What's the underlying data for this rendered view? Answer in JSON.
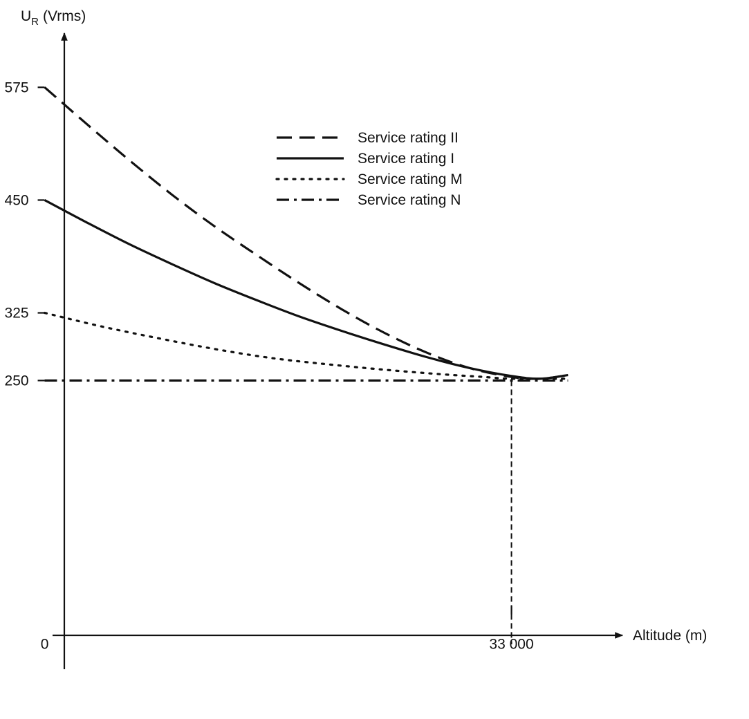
{
  "chart_data": {
    "type": "line",
    "ylabel_main": "U",
    "ylabel_sub": "R",
    "ylabel_unit": "(Vrms)",
    "xlabel": "Altitude (m)",
    "x_ticks": [
      {
        "value": 0,
        "label": "0"
      },
      {
        "value": 33000,
        "label": "33 000"
      }
    ],
    "y_ticks": [
      {
        "value": 575,
        "label": "575"
      },
      {
        "value": 450,
        "label": "450"
      },
      {
        "value": 325,
        "label": "325"
      },
      {
        "value": 250,
        "label": "250"
      }
    ],
    "xlim": [
      -1200,
      42800
    ],
    "ylim": [
      -70,
      635
    ],
    "reference_line": {
      "x": 33000,
      "y": 250,
      "style": "dashed"
    },
    "series": [
      {
        "name": "Service rating II",
        "style": "dashed",
        "x": [
          0,
          3000,
          6000,
          9000,
          12000,
          15000,
          18000,
          21000,
          24000,
          27000,
          30000,
          33000,
          35000,
          37000
        ],
        "y": [
          575,
          534,
          494,
          456,
          421,
          389,
          358,
          329,
          303,
          281,
          264,
          254,
          252,
          256
        ]
      },
      {
        "name": "Service rating I",
        "style": "solid",
        "x": [
          0,
          3000,
          6000,
          9000,
          12000,
          15000,
          18000,
          21000,
          24000,
          27000,
          30000,
          33000,
          35000,
          37000
        ],
        "y": [
          450,
          425,
          401,
          379,
          358,
          339,
          321,
          305,
          290,
          276,
          264,
          255,
          252,
          256
        ]
      },
      {
        "name": "Service rating M",
        "style": "dotted",
        "x": [
          0,
          4000,
          8000,
          12000,
          16000,
          20000,
          24000,
          28000,
          31000,
          33000,
          37000
        ],
        "y": [
          325,
          310,
          297,
          285,
          275,
          268,
          262,
          257,
          254,
          252,
          252
        ]
      },
      {
        "name": "Service rating N",
        "style": "dashdot",
        "x": [
          0,
          10000,
          20000,
          30000,
          33000,
          37000
        ],
        "y": [
          250,
          250,
          250,
          250,
          250,
          250
        ]
      }
    ],
    "legend_position": "top-right",
    "grid": false
  }
}
